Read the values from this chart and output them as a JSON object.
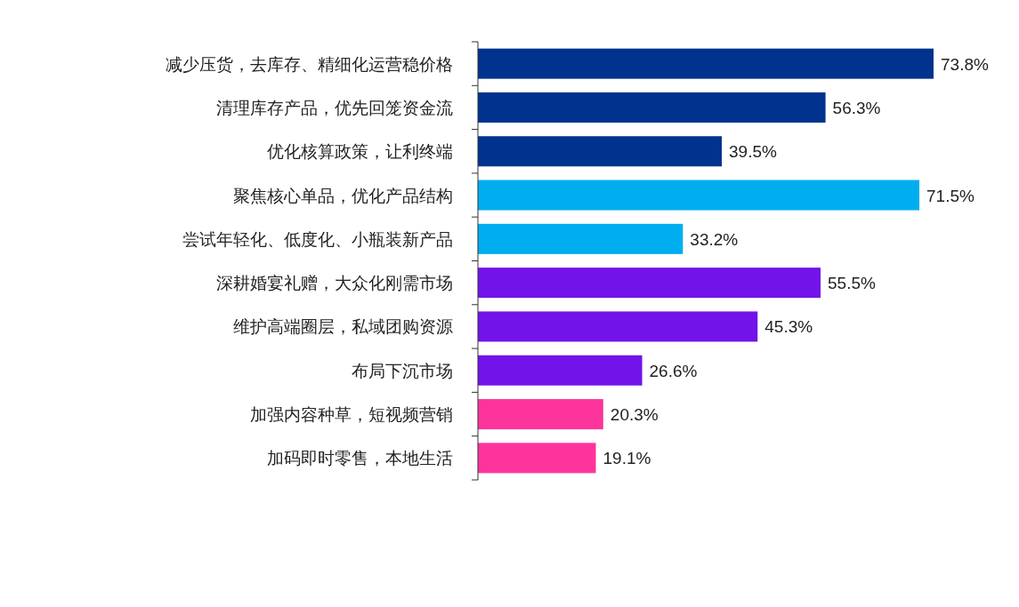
{
  "chart_data": {
    "type": "bar",
    "orientation": "horizontal",
    "categories": [
      "减少压货，去库存、精细化运营稳价格",
      "清理库存产品，优先回笼资金流",
      "优化核算政策，让利终端",
      "聚焦核心单品，优化产品结构",
      "尝试年轻化、低度化、小瓶装新产品",
      "深耕婚宴礼赠，大众化刚需市场",
      "维护高端圈层，私域团购资源",
      "布局下沉市场",
      "加强内容种草，短视频营销",
      "加码即时零售，本地生活"
    ],
    "values": [
      73.8,
      56.3,
      39.5,
      71.5,
      33.2,
      55.5,
      45.3,
      26.6,
      20.3,
      19.1
    ],
    "value_labels": [
      "73.8%",
      "56.3%",
      "39.5%",
      "71.5%",
      "33.2%",
      "55.5%",
      "45.3%",
      "26.6%",
      "20.3%",
      "19.1%"
    ],
    "colors": [
      "#00338d",
      "#00338d",
      "#00338d",
      "#00aeef",
      "#00aeef",
      "#7213ea",
      "#7213ea",
      "#7213ea",
      "#fd349c",
      "#fd349c"
    ]
  }
}
